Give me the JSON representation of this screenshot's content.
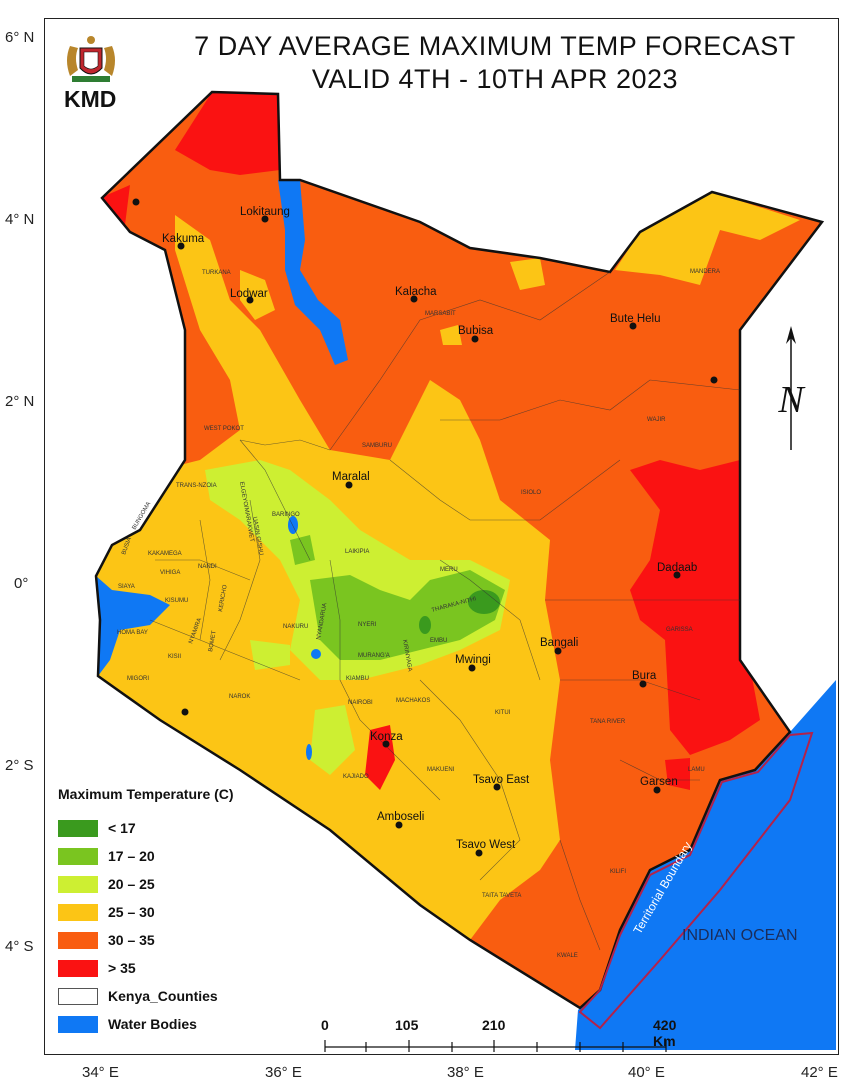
{
  "title": {
    "line1": "7 DAY AVERAGE MAXIMUM TEMP FORECAST",
    "line2": "VALID 4TH - 10TH APR 2023"
  },
  "logo": {
    "text": "KMD",
    "icon": "kenya-coat-of-arms-icon"
  },
  "lat_ticks": [
    "6° N",
    "4° N",
    "2° N",
    "0°",
    "2° S",
    "4° S"
  ],
  "lon_ticks": [
    "34° E",
    "36° E",
    "38° E",
    "40° E",
    "42° E"
  ],
  "legend": {
    "title": "Maximum Temperature (C)",
    "items": [
      {
        "label": "< 17",
        "color": "#3a9a1e"
      },
      {
        "label": "17 – 20",
        "color": "#7ac520"
      },
      {
        "label": "20 – 25",
        "color": "#cdef32"
      },
      {
        "label": "25 – 30",
        "color": "#fcc515"
      },
      {
        "label": "30 – 35",
        "color": "#f95d10"
      },
      {
        "label": "> 35",
        "color": "#fa1212"
      },
      {
        "label": "Kenya_Counties",
        "color": "#ffffff"
      },
      {
        "label": "Water Bodies",
        "color": "#0f78f4"
      }
    ]
  },
  "scale_bar": {
    "labels": [
      "0",
      "105",
      "210",
      "420 Km"
    ]
  },
  "north_arrow": {
    "letter": "N",
    "icon": "north-arrow-icon"
  },
  "annotations": {
    "ocean": "INDIAN OCEAN",
    "boundary": "Territorial Boundary"
  },
  "places": {
    "lokitaung": "Lokitaung",
    "kakuma": "Kakuma",
    "lodwar": "Lodwar",
    "kalacha": "Kalacha",
    "bubisa": "Bubisa",
    "bute_helu": "Bute Helu",
    "maralal": "Maralal",
    "dadaab": "Dadaab",
    "bangali": "Bangali",
    "mwingi": "Mwingi",
    "bura": "Bura",
    "konza": "Konza",
    "tsavo_east": "Tsavo East",
    "garsen": "Garsen",
    "amboseli": "Amboseli",
    "tsavo_west": "Tsavo West"
  },
  "counties": {
    "turkana": "TURKANA",
    "marsabit": "MARSABIT",
    "mandera": "MANDERA",
    "wajir": "WAJIR",
    "west_pokot": "WEST POKOT",
    "samburu": "SAMBURU",
    "isiolo": "ISIOLO",
    "trans_nzoia": "TRANS-NZOIA",
    "baringo": "BARINGO",
    "laikipia": "LAIKIPIA",
    "meru": "MERU",
    "elgeyo": "ELGEYO/MARAKWET",
    "uasin_gishu": "UASIN GISHU",
    "bungoma": "BUNGOMA",
    "kakamega": "KAKAMEGA",
    "nandi": "NANDI",
    "busia": "BUSIA",
    "siaya": "SIAYA",
    "vihiga": "VIHIGA",
    "kisumu": "KISUMU",
    "kericho": "KERICHO",
    "nakuru": "NAKURU",
    "nyandarua": "NYANDARUA",
    "nyeri": "NYERI",
    "kirinyaga": "KIRINYAGA",
    "tharaka": "THARAKA-NITHI",
    "embu": "EMBU",
    "homa_bay": "HOMA BAY",
    "nyamira": "NYAMIRA",
    "bomet": "BOMET",
    "kisii": "KISII",
    "muranga": "MURANG'A",
    "migori": "MIGORI",
    "narok": "NAROK",
    "kiambu": "KIAMBU",
    "nairobi": "NAIROBI",
    "machakos": "MACHAKOS",
    "kitui": "KITUI",
    "garissa": "GARISSA",
    "tana_river": "TANA RIVER",
    "kajiado": "KAJIADO",
    "makueni": "MAKUENI",
    "lamu": "LAMU",
    "taita": "TAITA TAVETA",
    "kilifi": "KILIFI",
    "kwale": "KWALE"
  }
}
